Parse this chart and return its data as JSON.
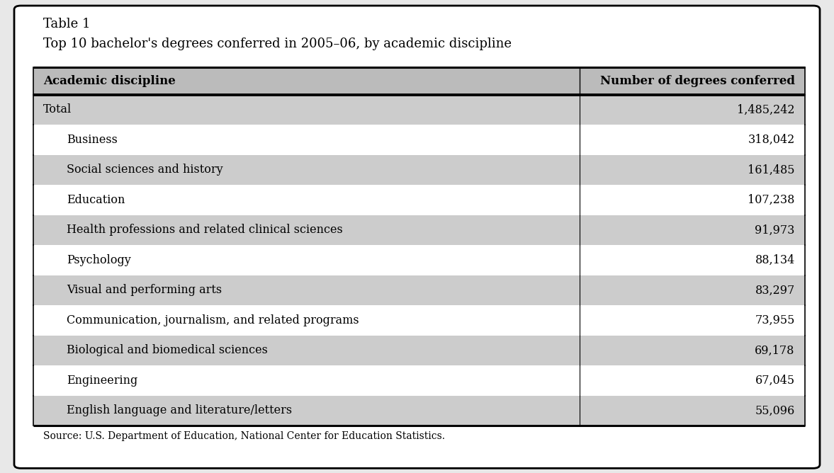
{
  "table_label": "Table 1",
  "title": "Top 10 bachelor's degrees conferred in 2005–06, by academic discipline",
  "col1_header": "Academic discipline",
  "col2_header": "Number of degrees conferred",
  "rows": [
    {
      "discipline": "Total",
      "value": "1,485,242",
      "indent": false,
      "bold": false
    },
    {
      "discipline": "Business",
      "value": "318,042",
      "indent": true,
      "bold": false
    },
    {
      "discipline": "Social sciences and history",
      "value": "161,485",
      "indent": true,
      "bold": false
    },
    {
      "discipline": "Education",
      "value": "107,238",
      "indent": true,
      "bold": false
    },
    {
      "discipline": "Health professions and related clinical sciences",
      "value": "91,973",
      "indent": true,
      "bold": false
    },
    {
      "discipline": "Psychology",
      "value": "88,134",
      "indent": true,
      "bold": false
    },
    {
      "discipline": "Visual and performing arts",
      "value": "83,297",
      "indent": true,
      "bold": false
    },
    {
      "discipline": "Communication, journalism, and related programs",
      "value": "73,955",
      "indent": true,
      "bold": false
    },
    {
      "discipline": "Biological and biomedical sciences",
      "value": "69,178",
      "indent": true,
      "bold": false
    },
    {
      "discipline": "Engineering",
      "value": "67,045",
      "indent": true,
      "bold": false
    },
    {
      "discipline": "English language and literature/letters",
      "value": "55,096",
      "indent": true,
      "bold": false
    }
  ],
  "source_text": "Source: U.S. Department of Education, National Center for Education Statistics.",
  "shaded_rows": [
    0,
    2,
    4,
    6,
    8,
    10
  ],
  "bg_color": "#ffffff",
  "shade_color": "#cccccc",
  "header_shade_color": "#bbbbbb",
  "border_color": "#000000",
  "outer_bg": "#e8e8e8",
  "font_family": "serif",
  "fig_width": 11.77,
  "fig_height": 6.68,
  "dpi": 100
}
